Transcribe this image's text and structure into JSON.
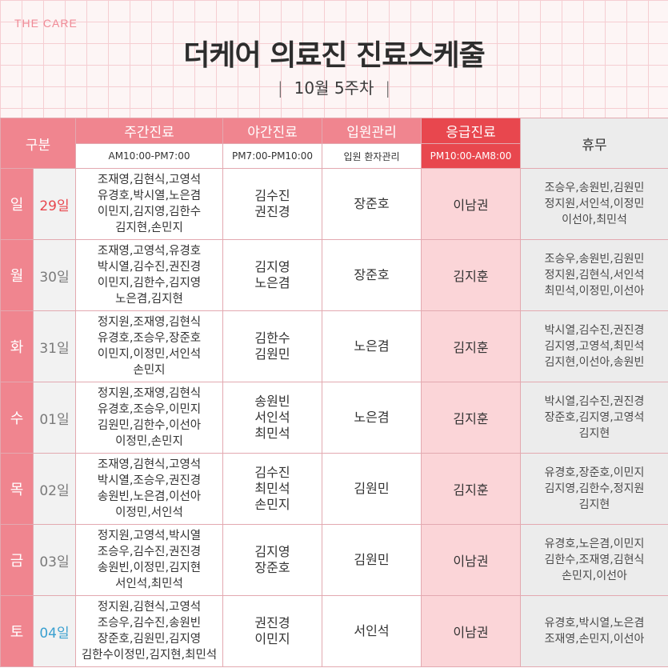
{
  "brand": "THE CARE",
  "title": "더케어 의료진 진료스케줄",
  "subtitle": "10월 5주차",
  "headers": {
    "category": "구분",
    "day_clinic": "주간진료",
    "night_clinic": "야간진료",
    "inpatient": "입원관리",
    "emergency": "응급진료",
    "off": "휴무"
  },
  "subheaders": {
    "day_clinic": "AM10:00-PM7:00",
    "night_clinic": "PM7:00-PM10:00",
    "inpatient": "입원 환자관리",
    "emergency": "PM10:00-AM8:00"
  },
  "colors": {
    "pink": "#f0858f",
    "red": "#e8474e",
    "er_bg": "#fbd5d8",
    "off_bg": "#ececec"
  },
  "rows": [
    {
      "day": "일",
      "date": "29일",
      "day_lines": [
        "조재영,김현식,고영석",
        "유경호,박시열,노은겸",
        "이민지,김지영,김한수",
        "김지현,손민지"
      ],
      "night_lines": [
        "김수진",
        "권진경"
      ],
      "inpatient": "장준호",
      "emergency": "이남권",
      "off_lines": [
        "조승우,송원빈,김원민",
        "정지원,서인석,이정민",
        "이선아,최민석"
      ]
    },
    {
      "day": "월",
      "date": "30일",
      "day_lines": [
        "조재영,고영석,유경호",
        "박시열,김수진,권진경",
        "이민지,김한수,김지영",
        "노은겸,김지현"
      ],
      "night_lines": [
        "김지영",
        "노은겸"
      ],
      "inpatient": "장준호",
      "emergency": "김지훈",
      "off_lines": [
        "조승우,송원빈,김원민",
        "정지원,김현식,서인석",
        "최민석,이정민,이선아"
      ]
    },
    {
      "day": "화",
      "date": "31일",
      "day_lines": [
        "정지원,조재영,김현식",
        "유경호,조승우,장준호",
        "이민지,이정민,서인석",
        "손민지"
      ],
      "night_lines": [
        "김한수",
        "김원민"
      ],
      "inpatient": "노은겸",
      "emergency": "김지훈",
      "off_lines": [
        "박시열,김수진,권진경",
        "김지영,고영석,최민석",
        "김지현,이선아,송원빈"
      ]
    },
    {
      "day": "수",
      "date": "01일",
      "day_lines": [
        "정지원,조재영,김현식",
        "유경호,조승우,이민지",
        "김원민,김한수,이선아",
        "이정민,손민지"
      ],
      "night_lines": [
        "송원빈",
        "서인석",
        "최민석"
      ],
      "inpatient": "노은겸",
      "emergency": "김지훈",
      "off_lines": [
        "박시열,김수진,권진경",
        "장준호,김지영,고영석",
        "김지현"
      ]
    },
    {
      "day": "목",
      "date": "02일",
      "day_lines": [
        "조재영,김현식,고영석",
        "박시열,조승우,권진경",
        "송원빈,노은겸,이선아",
        "이정민,서인석"
      ],
      "night_lines": [
        "김수진",
        "최민석",
        "손민지"
      ],
      "inpatient": "김원민",
      "emergency": "김지훈",
      "off_lines": [
        "유경호,장준호,이민지",
        "김지영,김한수,정지원",
        "김지현"
      ]
    },
    {
      "day": "금",
      "date": "03일",
      "day_lines": [
        "정지원,고영석,박시열",
        "조승우,김수진,권진경",
        "송원빈,이정민,김지현",
        "서인석,최민석"
      ],
      "night_lines": [
        "김지영",
        "장준호"
      ],
      "inpatient": "김원민",
      "emergency": "이남권",
      "off_lines": [
        "유경호,노은겸,이민지",
        "김한수,조재영,김현식",
        "손민지,이선아"
      ]
    },
    {
      "day": "토",
      "date": "04일",
      "day_lines": [
        "정지원,김현식,고영석",
        "조승우,김수진,송원빈",
        "장준호,김원민,김지영",
        "김한수이정민,김지현,최민석"
      ],
      "night_lines": [
        "권진경",
        "이민지"
      ],
      "inpatient": "서인석",
      "emergency": "이남권",
      "off_lines": [
        "유경호,박시열,노은겸",
        "조재영,손민지,이선아"
      ]
    }
  ]
}
